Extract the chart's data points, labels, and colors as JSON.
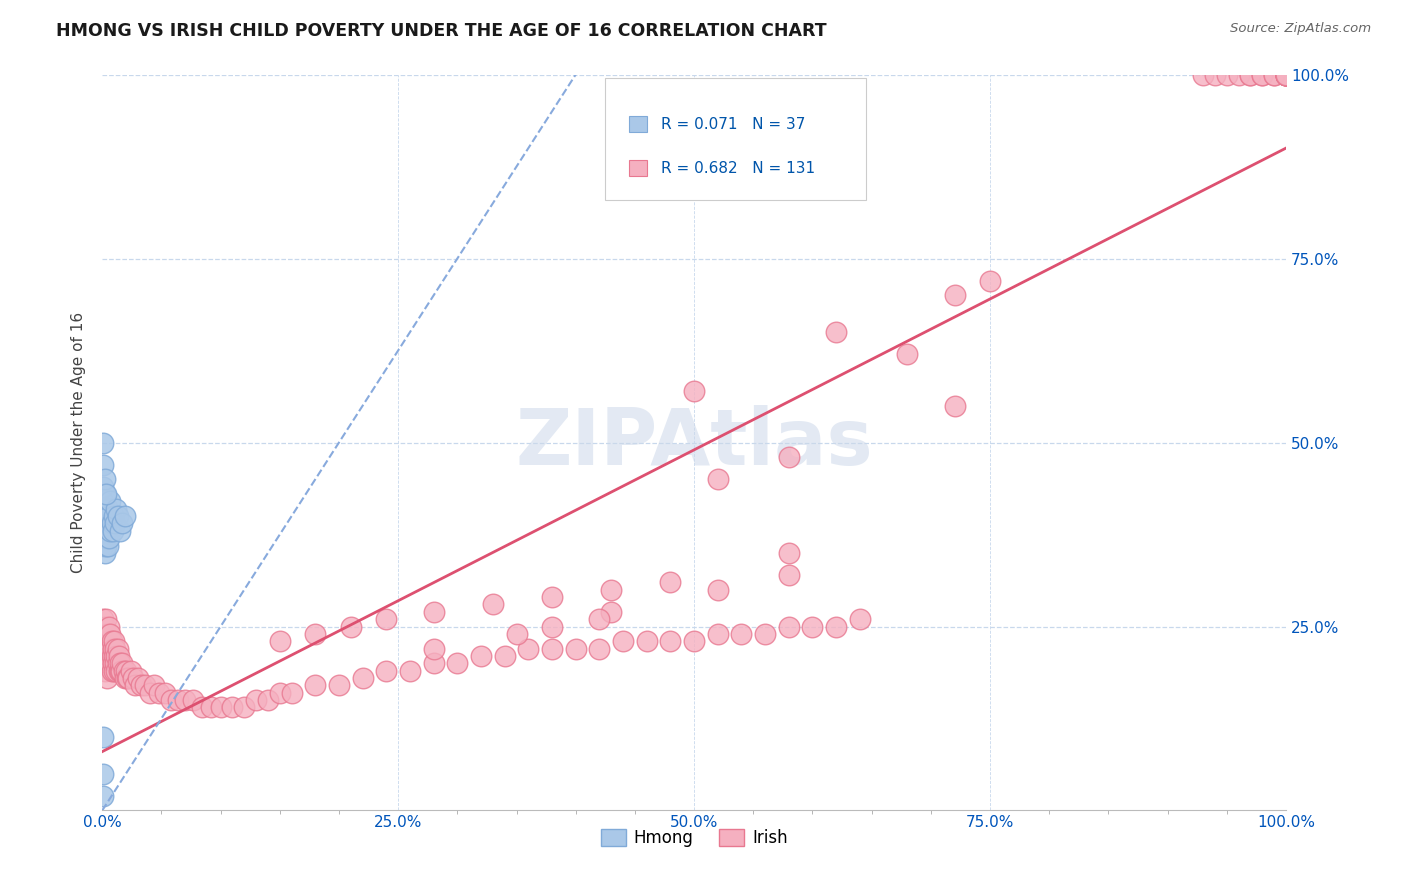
{
  "title": "HMONG VS IRISH CHILD POVERTY UNDER THE AGE OF 16 CORRELATION CHART",
  "source_text": "Source: ZipAtlas.com",
  "ylabel": "Child Poverty Under the Age of 16",
  "watermark": "ZIPAtlas",
  "xmin": 0.0,
  "xmax": 1.0,
  "ymin": 0.0,
  "ymax": 1.0,
  "x_tick_labels": [
    "0.0%",
    "",
    "",
    "",
    "",
    "25.0%",
    "",
    "",
    "",
    "",
    "50.0%",
    "",
    "",
    "",
    "",
    "75.0%",
    "",
    "",
    "",
    "",
    "100.0%"
  ],
  "x_tick_vals": [
    0.0,
    0.05,
    0.1,
    0.15,
    0.2,
    0.25,
    0.3,
    0.35,
    0.4,
    0.45,
    0.5,
    0.55,
    0.6,
    0.65,
    0.7,
    0.75,
    0.8,
    0.85,
    0.9,
    0.95,
    1.0
  ],
  "y_tick_labels": [
    "25.0%",
    "50.0%",
    "75.0%",
    "100.0%"
  ],
  "y_tick_vals": [
    0.25,
    0.5,
    0.75,
    1.0
  ],
  "hmong_color": "#aac8e8",
  "irish_color": "#f5b0c0",
  "hmong_edge_color": "#80aad8",
  "irish_edge_color": "#e87890",
  "hmong_R": 0.071,
  "hmong_N": 37,
  "irish_R": 0.682,
  "irish_N": 131,
  "legend_color": "#0055aa",
  "hmong_trend_color": "#88aadd",
  "irish_trend_color": "#dd5070",
  "background_color": "#ffffff",
  "grid_color": "#c8d8ec",
  "title_color": "#1a1a1a",
  "hmong_x": [
    0.001,
    0.001,
    0.001,
    0.001,
    0.001,
    0.002,
    0.002,
    0.002,
    0.002,
    0.002,
    0.003,
    0.003,
    0.003,
    0.004,
    0.004,
    0.005,
    0.005,
    0.006,
    0.006,
    0.007,
    0.007,
    0.008,
    0.009,
    0.01,
    0.011,
    0.012,
    0.013,
    0.015,
    0.017,
    0.019,
    0.001,
    0.001,
    0.002,
    0.003,
    0.001,
    0.001,
    0.001
  ],
  "hmong_y": [
    0.36,
    0.38,
    0.4,
    0.42,
    0.44,
    0.35,
    0.37,
    0.39,
    0.41,
    0.43,
    0.36,
    0.38,
    0.4,
    0.37,
    0.39,
    0.36,
    0.41,
    0.37,
    0.4,
    0.38,
    0.42,
    0.39,
    0.38,
    0.4,
    0.39,
    0.41,
    0.4,
    0.38,
    0.39,
    0.4,
    0.47,
    0.5,
    0.45,
    0.43,
    0.1,
    0.05,
    0.02
  ],
  "irish_x_low": [
    0.001,
    0.001,
    0.001,
    0.001,
    0.002,
    0.002,
    0.002,
    0.002,
    0.003,
    0.003,
    0.003,
    0.003,
    0.004,
    0.004,
    0.004,
    0.005,
    0.005,
    0.005,
    0.006,
    0.006,
    0.006,
    0.007,
    0.007,
    0.007,
    0.008,
    0.008,
    0.008,
    0.009,
    0.009,
    0.01,
    0.01,
    0.01,
    0.011,
    0.011,
    0.012,
    0.012,
    0.013,
    0.013,
    0.014,
    0.014,
    0.015,
    0.015,
    0.016,
    0.017,
    0.018,
    0.019,
    0.02,
    0.021,
    0.022,
    0.024,
    0.026,
    0.028,
    0.03,
    0.033,
    0.036,
    0.04,
    0.044,
    0.048,
    0.053,
    0.058,
    0.064,
    0.07,
    0.077,
    0.084,
    0.092,
    0.1
  ],
  "irish_y_low": [
    0.22,
    0.24,
    0.2,
    0.26,
    0.21,
    0.23,
    0.25,
    0.19,
    0.22,
    0.24,
    0.2,
    0.26,
    0.21,
    0.23,
    0.18,
    0.22,
    0.24,
    0.2,
    0.21,
    0.23,
    0.25,
    0.2,
    0.22,
    0.24,
    0.19,
    0.21,
    0.23,
    0.2,
    0.22,
    0.19,
    0.21,
    0.23,
    0.2,
    0.22,
    0.19,
    0.21,
    0.2,
    0.22,
    0.19,
    0.21,
    0.19,
    0.2,
    0.19,
    0.2,
    0.19,
    0.18,
    0.19,
    0.18,
    0.18,
    0.19,
    0.18,
    0.17,
    0.18,
    0.17,
    0.17,
    0.16,
    0.17,
    0.16,
    0.16,
    0.15,
    0.15,
    0.15,
    0.15,
    0.14,
    0.14,
    0.14
  ],
  "irish_x_mid": [
    0.11,
    0.12,
    0.13,
    0.14,
    0.15,
    0.16,
    0.18,
    0.2,
    0.22,
    0.24,
    0.26,
    0.28,
    0.3,
    0.32,
    0.34,
    0.36,
    0.38,
    0.4,
    0.42,
    0.44,
    0.46,
    0.48,
    0.5,
    0.52,
    0.54,
    0.56,
    0.58,
    0.6,
    0.62,
    0.64,
    0.15,
    0.18,
    0.21,
    0.24,
    0.28,
    0.33,
    0.38,
    0.43,
    0.48,
    0.38,
    0.43,
    0.28,
    0.35,
    0.42,
    0.52,
    0.58
  ],
  "irish_y_mid": [
    0.14,
    0.14,
    0.15,
    0.15,
    0.16,
    0.16,
    0.17,
    0.17,
    0.18,
    0.19,
    0.19,
    0.2,
    0.2,
    0.21,
    0.21,
    0.22,
    0.22,
    0.22,
    0.22,
    0.23,
    0.23,
    0.23,
    0.23,
    0.24,
    0.24,
    0.24,
    0.25,
    0.25,
    0.25,
    0.26,
    0.23,
    0.24,
    0.25,
    0.26,
    0.27,
    0.28,
    0.29,
    0.3,
    0.31,
    0.25,
    0.27,
    0.22,
    0.24,
    0.26,
    0.3,
    0.32
  ],
  "irish_x_high": [
    0.93,
    0.94,
    0.95,
    0.96,
    0.97,
    0.97,
    0.98,
    0.98,
    0.99,
    0.99,
    1.0,
    1.0,
    1.0,
    1.0,
    1.0,
    1.0,
    1.0,
    1.0,
    1.0
  ],
  "irish_y_high": [
    1.0,
    1.0,
    1.0,
    1.0,
    1.0,
    1.0,
    1.0,
    1.0,
    1.0,
    1.0,
    1.0,
    1.0,
    1.0,
    1.0,
    1.0,
    1.0,
    1.0,
    1.0,
    1.0
  ],
  "irish_x_outliers": [
    0.5,
    0.52,
    0.58,
    0.62,
    0.68,
    0.72,
    0.58,
    0.72,
    0.75
  ],
  "irish_y_outliers": [
    0.57,
    0.45,
    0.48,
    0.65,
    0.62,
    0.7,
    0.35,
    0.55,
    0.72
  ],
  "irish_trend_x0": 0.0,
  "irish_trend_y0": 0.08,
  "irish_trend_x1": 1.0,
  "irish_trend_y1": 0.9,
  "hmong_trend_x0": 0.0,
  "hmong_trend_y0": 0.0,
  "hmong_trend_x1": 0.4,
  "hmong_trend_y1": 1.0
}
